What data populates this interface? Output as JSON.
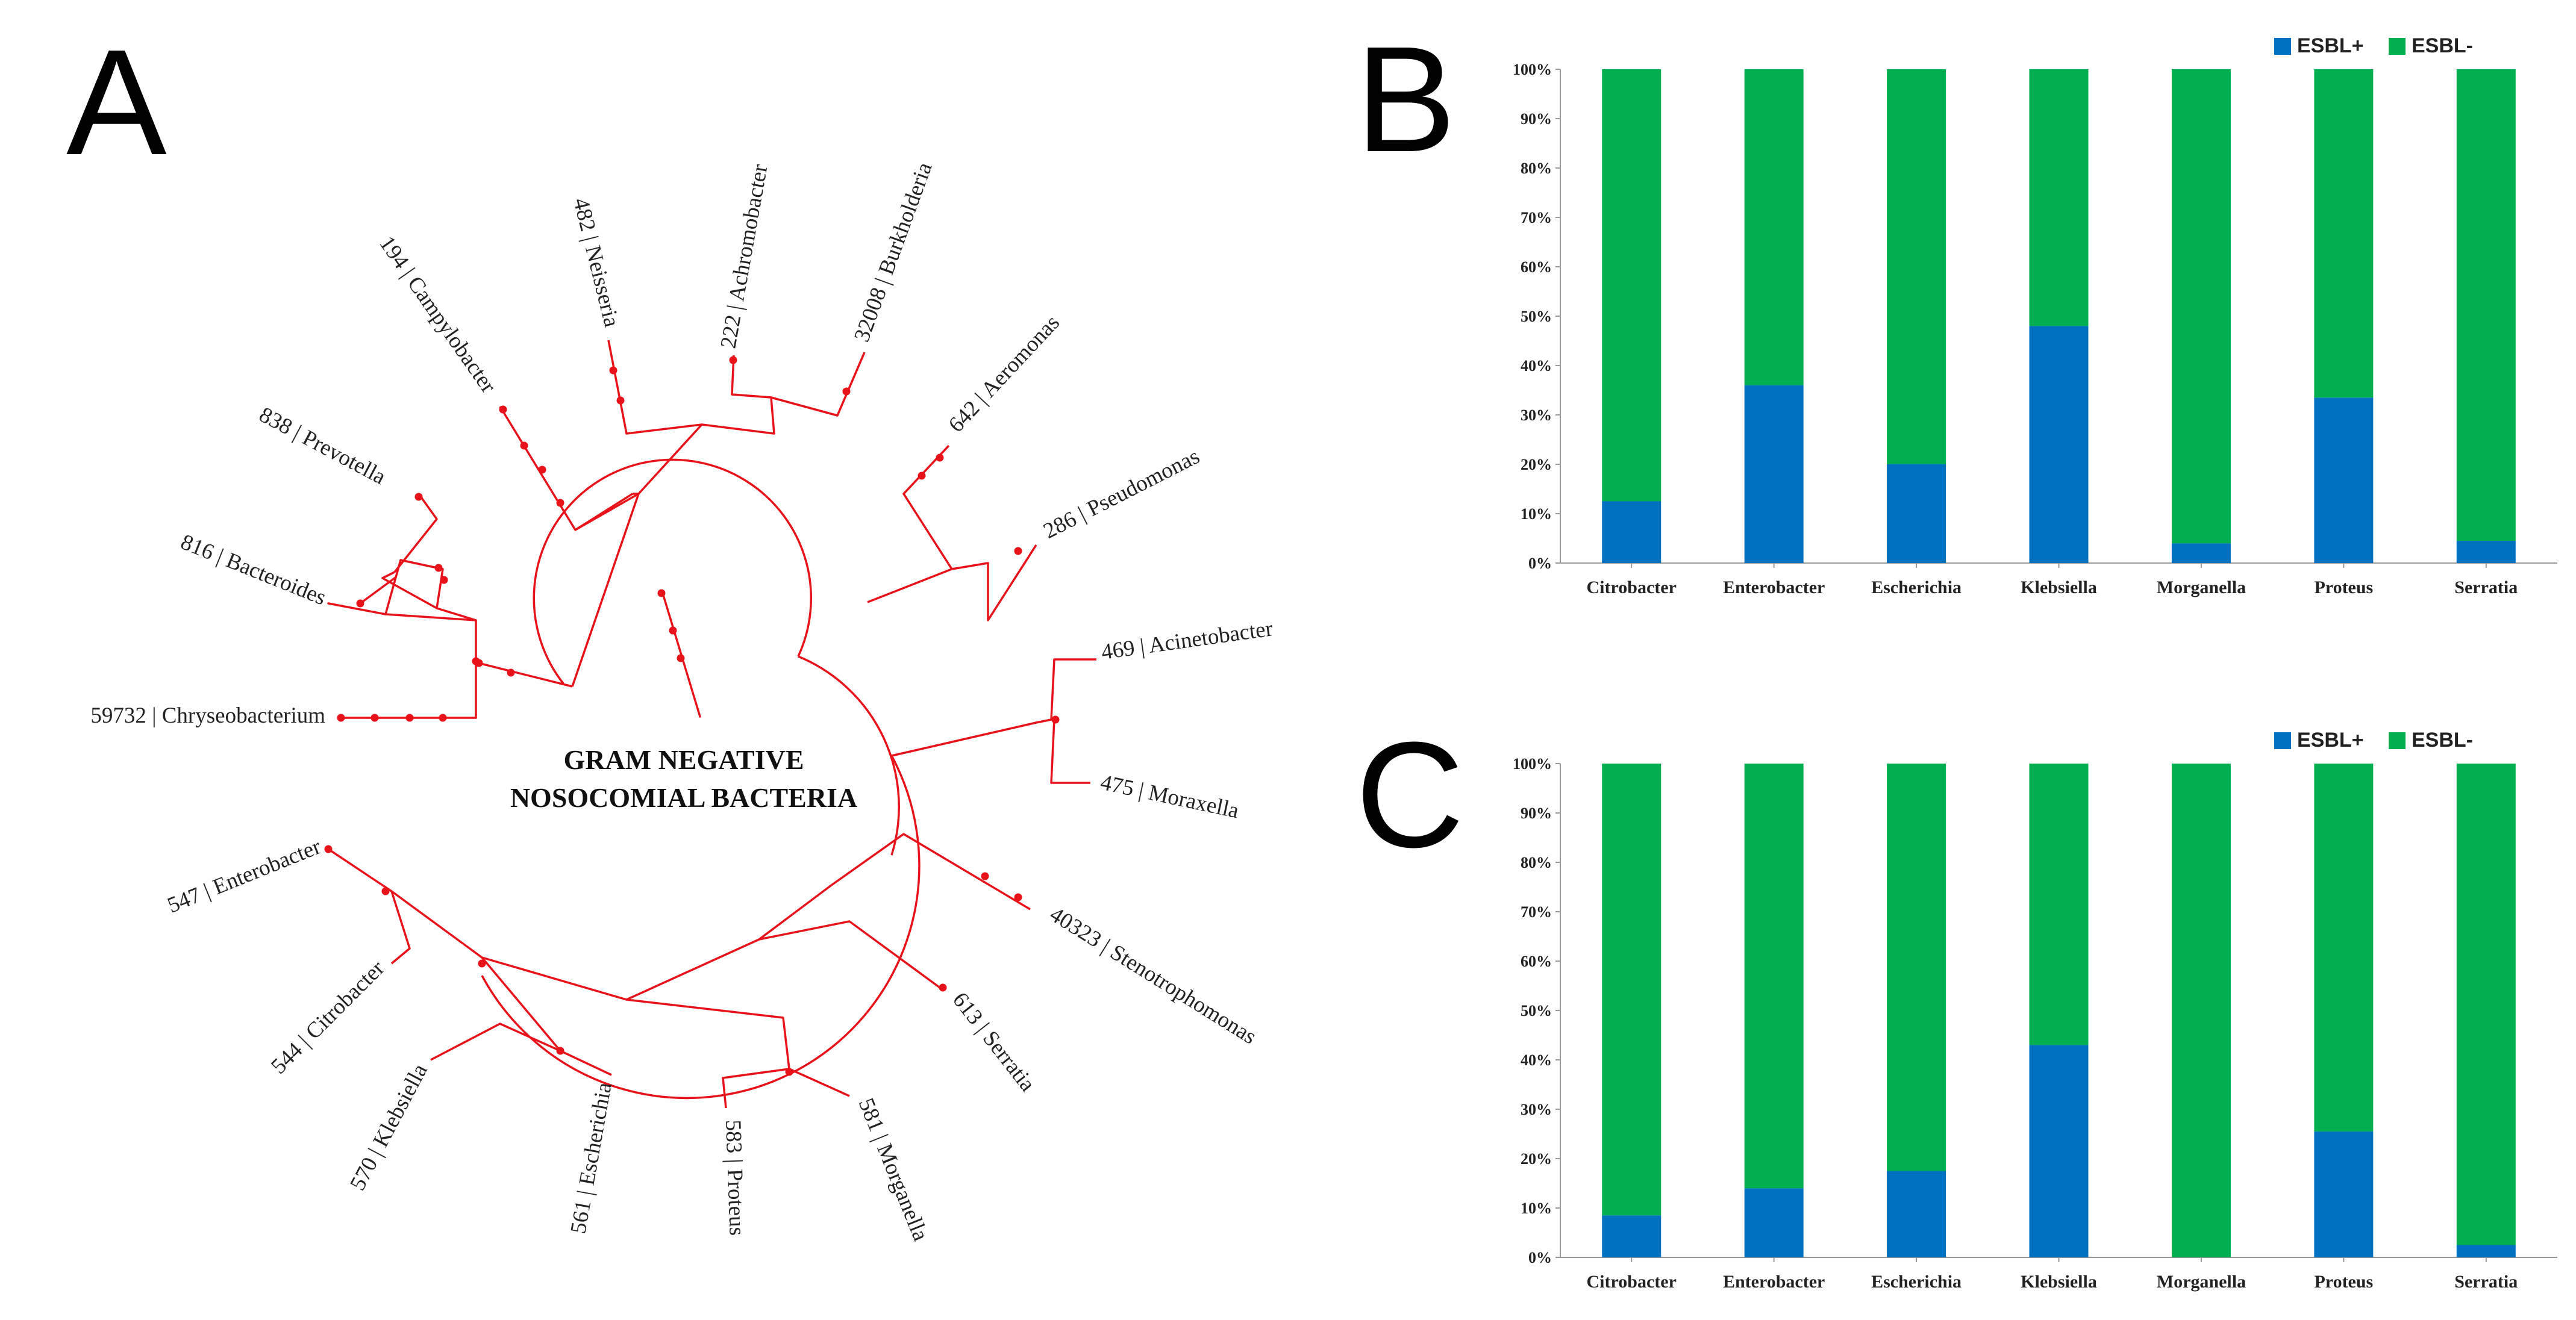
{
  "panels": {
    "a": "A",
    "b": "B",
    "c": "C"
  },
  "colors": {
    "tree": "#e8131a",
    "esbl_pos": "#0070c0",
    "esbl_neg": "#00b050",
    "axis": "#999999"
  },
  "tree": {
    "title_line1": "GRAM NEGATIVE",
    "title_line2": "NOSOCOMIAL BACTERIA",
    "leaves": [
      {
        "id": "chryseobacterium",
        "label": "59732 | Chryseobacterium"
      },
      {
        "id": "bacteroides",
        "label": "816 | Bacteroides"
      },
      {
        "id": "prevotella",
        "label": "838 | Prevotella"
      },
      {
        "id": "campylobacter",
        "label": "194 | Campylobacter"
      },
      {
        "id": "neisseria",
        "label": "482 | Neisseria"
      },
      {
        "id": "achromobacter",
        "label": "222 | Achromobacter"
      },
      {
        "id": "burkholderia",
        "label": "32008 | Burkholderia"
      },
      {
        "id": "aeromonas",
        "label": "642 | Aeromonas"
      },
      {
        "id": "pseudomonas",
        "label": "286 | Pseudomonas"
      },
      {
        "id": "acinetobacter",
        "label": "469 | Acinetobacter"
      },
      {
        "id": "moraxella",
        "label": "475 | Moraxella"
      },
      {
        "id": "stenotrophomonas",
        "label": "40323 | Stenotrophomonas"
      },
      {
        "id": "serratia",
        "label": "613 | Serratia"
      },
      {
        "id": "morganella",
        "label": "581 | Morganella"
      },
      {
        "id": "proteus",
        "label": "583 | Proteus"
      },
      {
        "id": "escherichia",
        "label": "561 | Escherichia"
      },
      {
        "id": "klebsiella",
        "label": "570 | Klebsiella"
      },
      {
        "id": "citrobacter",
        "label": "544 | Citrobacter"
      },
      {
        "id": "enterobacter",
        "label": "547 | Enterobacter"
      }
    ]
  },
  "chart_data": [
    {
      "panel": "B",
      "type": "bar",
      "stacked": true,
      "categories": [
        "Citrobacter",
        "Enterobacter",
        "Escherichia",
        "Klebsiella",
        "Morganella",
        "Proteus",
        "Serratia"
      ],
      "series": [
        {
          "name": "ESBL+",
          "values": [
            12.5,
            36,
            20,
            48,
            4,
            33.5,
            4.5
          ]
        },
        {
          "name": "ESBL-",
          "values": [
            87.5,
            64,
            80,
            52,
            96,
            66.5,
            95.5
          ]
        }
      ],
      "ylim": [
        0,
        100
      ],
      "yticks": [
        "0%",
        "10%",
        "20%",
        "30%",
        "40%",
        "50%",
        "60%",
        "70%",
        "80%",
        "90%",
        "100%"
      ],
      "legend": "top-right",
      "title": "",
      "xlabel": "",
      "ylabel": ""
    },
    {
      "panel": "C",
      "type": "bar",
      "stacked": true,
      "categories": [
        "Citrobacter",
        "Enterobacter",
        "Escherichia",
        "Klebsiella",
        "Morganella",
        "Proteus",
        "Serratia"
      ],
      "series": [
        {
          "name": "ESBL+",
          "values": [
            8.5,
            14,
            17.5,
            43,
            0,
            25.5,
            2.5
          ]
        },
        {
          "name": "ESBL-",
          "values": [
            91.5,
            86,
            82.5,
            57,
            100,
            74.5,
            97.5
          ]
        }
      ],
      "ylim": [
        0,
        100
      ],
      "yticks": [
        "0%",
        "10%",
        "20%",
        "30%",
        "40%",
        "50%",
        "60%",
        "70%",
        "80%",
        "90%",
        "100%"
      ],
      "legend": "top-right",
      "title": "",
      "xlabel": "",
      "ylabel": ""
    }
  ]
}
